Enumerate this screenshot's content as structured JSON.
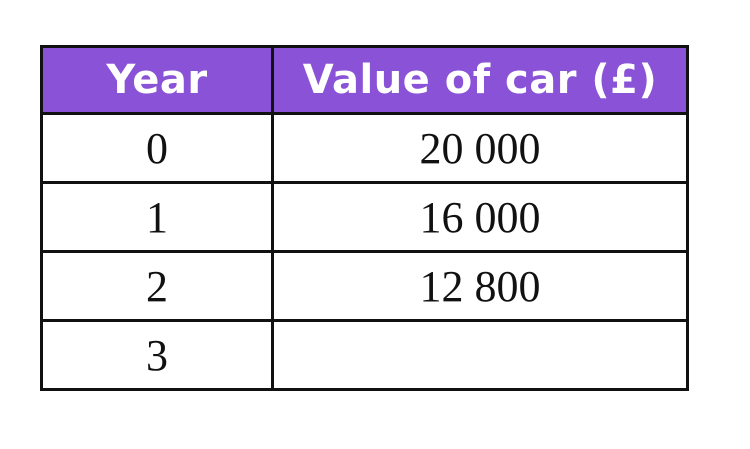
{
  "table": {
    "headers": [
      "Year",
      "Value of car (£)"
    ],
    "rows": [
      [
        "0",
        "20 000"
      ],
      [
        "1",
        "16 000"
      ],
      [
        "2",
        "12 800"
      ],
      [
        "3",
        ""
      ]
    ]
  },
  "colors": {
    "header_bg": "#8a52d6",
    "header_text": "#ffffff",
    "border": "#111111",
    "cell_text": "#111111"
  }
}
